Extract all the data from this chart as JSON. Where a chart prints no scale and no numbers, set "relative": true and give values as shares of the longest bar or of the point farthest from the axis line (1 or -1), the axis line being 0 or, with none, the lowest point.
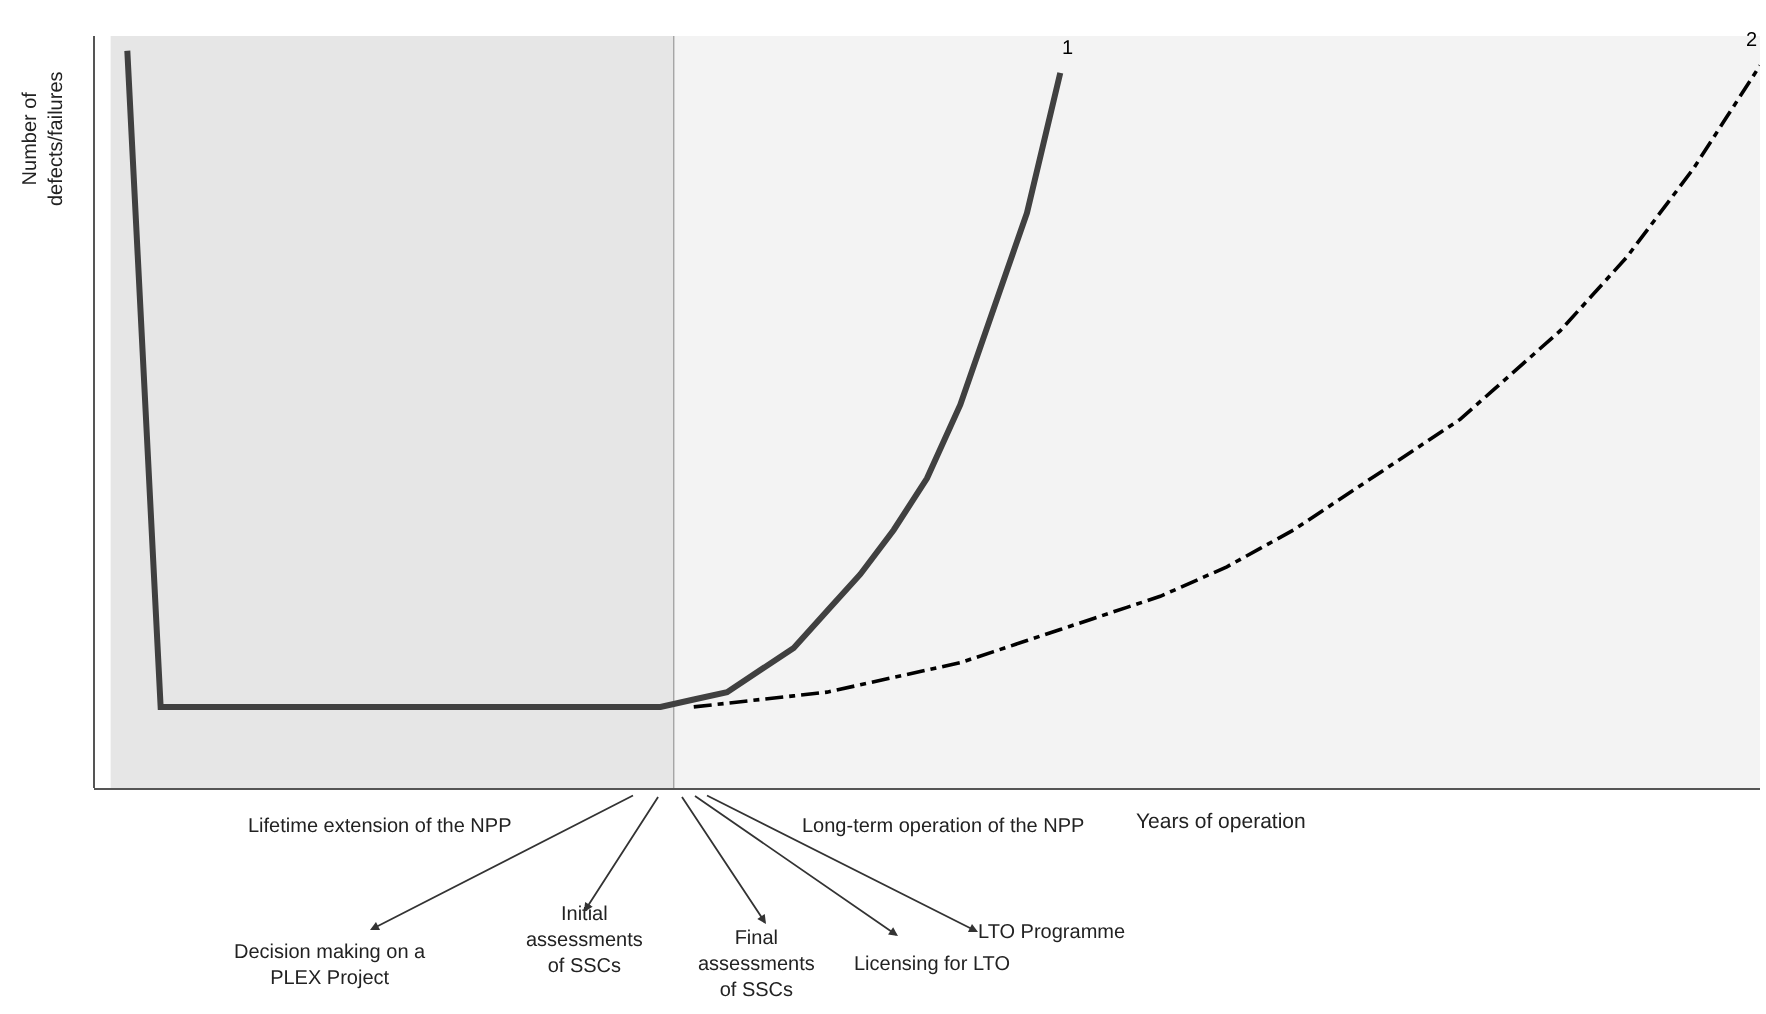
{
  "chart_data": {
    "type": "line",
    "relative": true,
    "xlabel": "Years of operation",
    "ylabel": "Number of defects/failures",
    "categories": [
      null,
      null,
      null,
      null,
      null,
      null,
      null,
      null,
      null,
      null,
      null,
      null,
      null,
      null,
      null,
      null,
      null,
      null,
      null,
      null,
      null,
      null,
      null,
      null,
      null,
      null,
      null,
      null,
      null,
      null,
      null,
      null,
      null,
      null,
      null,
      null,
      null,
      null,
      null,
      null,
      null,
      null,
      null,
      null,
      null,
      null,
      null,
      null,
      null,
      null,
      null
    ],
    "series": [
      {
        "name": "1",
        "color": "#404040",
        "line_style": "solid",
        "values": [
          null,
          1.0,
          0.11,
          0.11,
          0.11,
          0.11,
          0.11,
          0.11,
          0.11,
          0.11,
          0.11,
          0.11,
          0.11,
          0.11,
          0.11,
          0.11,
          0.11,
          0.11,
          0.12,
          0.13,
          0.16,
          0.19,
          0.24,
          0.29,
          0.35,
          0.42,
          0.52,
          0.65,
          0.78,
          0.97,
          null,
          null,
          null,
          null,
          null,
          null,
          null,
          null,
          null,
          null,
          null,
          null,
          null,
          null,
          null,
          null,
          null,
          null,
          null,
          null,
          null
        ]
      },
      {
        "name": "2",
        "color": "#000000",
        "line_style": "dashed",
        "values": [
          null,
          null,
          null,
          null,
          null,
          null,
          null,
          null,
          null,
          null,
          null,
          null,
          null,
          null,
          null,
          null,
          null,
          null,
          0.11,
          0.115,
          0.12,
          0.125,
          0.13,
          0.14,
          0.15,
          0.16,
          0.17,
          0.185,
          0.2,
          0.215,
          0.23,
          0.245,
          0.26,
          0.28,
          0.3,
          0.325,
          0.35,
          0.38,
          0.41,
          0.44,
          0.47,
          0.5,
          0.54,
          0.58,
          0.62,
          0.67,
          0.72,
          0.78,
          0.84,
          0.91,
          0.98
        ]
      }
    ],
    "annotations": [
      "Lifetime extension of the NPP",
      "Long-term operation of the NPP",
      "Decision making on a PLEX Project",
      "Initial assessments of SSCs",
      "Final assessments of SSCs",
      "Licensing for LTO",
      "LTO Programme"
    ],
    "marker": "none",
    "legend": false
  }
}
